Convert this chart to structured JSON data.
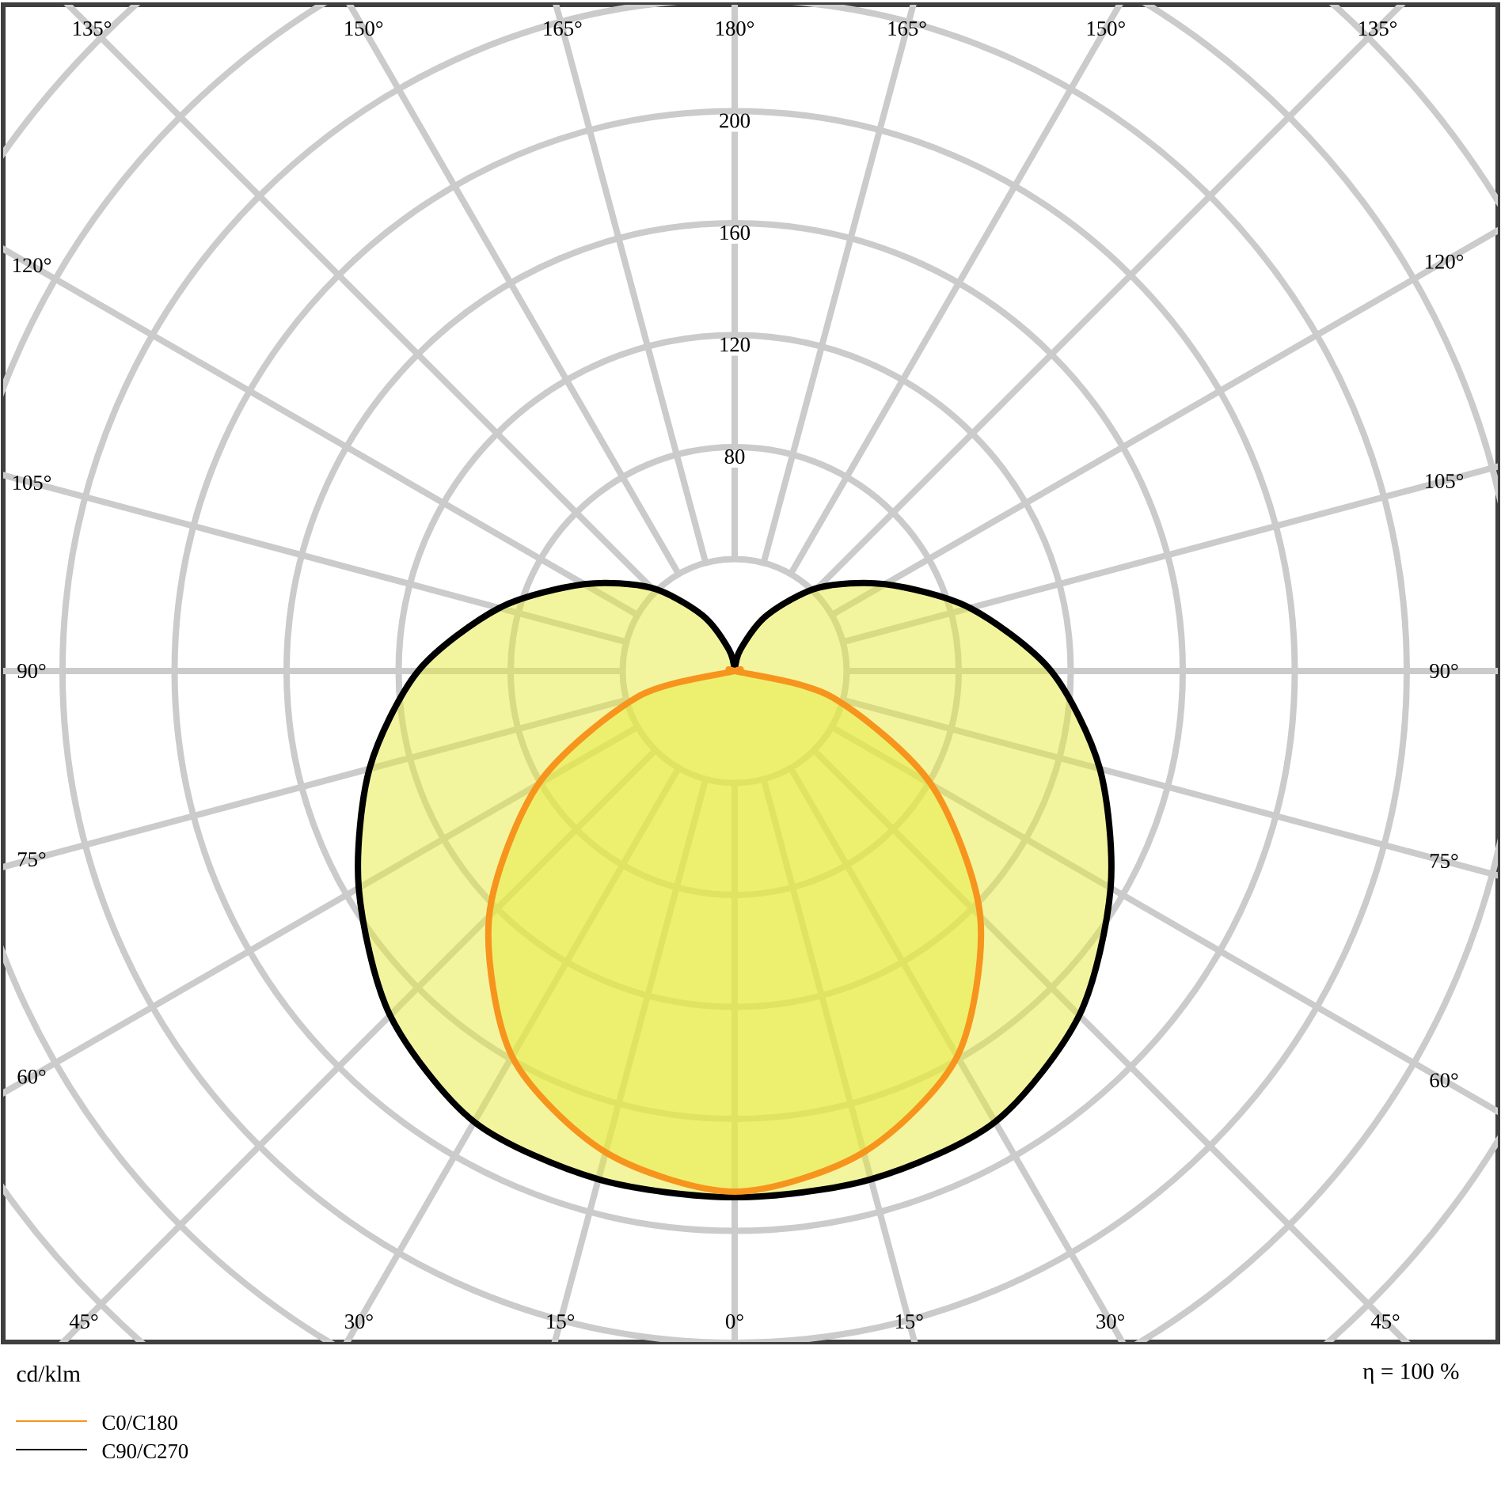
{
  "chart_data": {
    "type": "radar",
    "categories": [
      "180°",
      "165°",
      "150°",
      "135°",
      "120°",
      "105°",
      "90°",
      "75°",
      "60°",
      "45°",
      "30°",
      "15°",
      "0°",
      "15°",
      "30°",
      "45°",
      "60°",
      "75°",
      "90°",
      "105°",
      "120°",
      "135°",
      "150°",
      "165°"
    ],
    "series": [
      {
        "name": "C0/C180",
        "color": "#f7941d",
        "values": [
          0,
          0,
          0,
          0,
          0,
          0,
          0,
          36,
          81,
          124,
          159,
          178,
          186,
          178,
          159,
          124,
          81,
          36,
          0,
          0,
          0,
          0,
          0,
          0
        ]
      },
      {
        "name": "C90/C270",
        "color": "#000000",
        "values": [
          0,
          8,
          23,
          42,
          62,
          87,
          113,
          135,
          155,
          174,
          186,
          188,
          188,
          188,
          186,
          174,
          155,
          135,
          113,
          87,
          62,
          42,
          23,
          8
        ]
      }
    ],
    "ylim": [
      0,
      320
    ],
    "yticks": [
      80,
      120,
      160,
      200
    ],
    "ylabel": "cd/klm",
    "annotations": [
      "η = 100 %"
    ],
    "grid": true,
    "legend": "bottom left"
  }
}
